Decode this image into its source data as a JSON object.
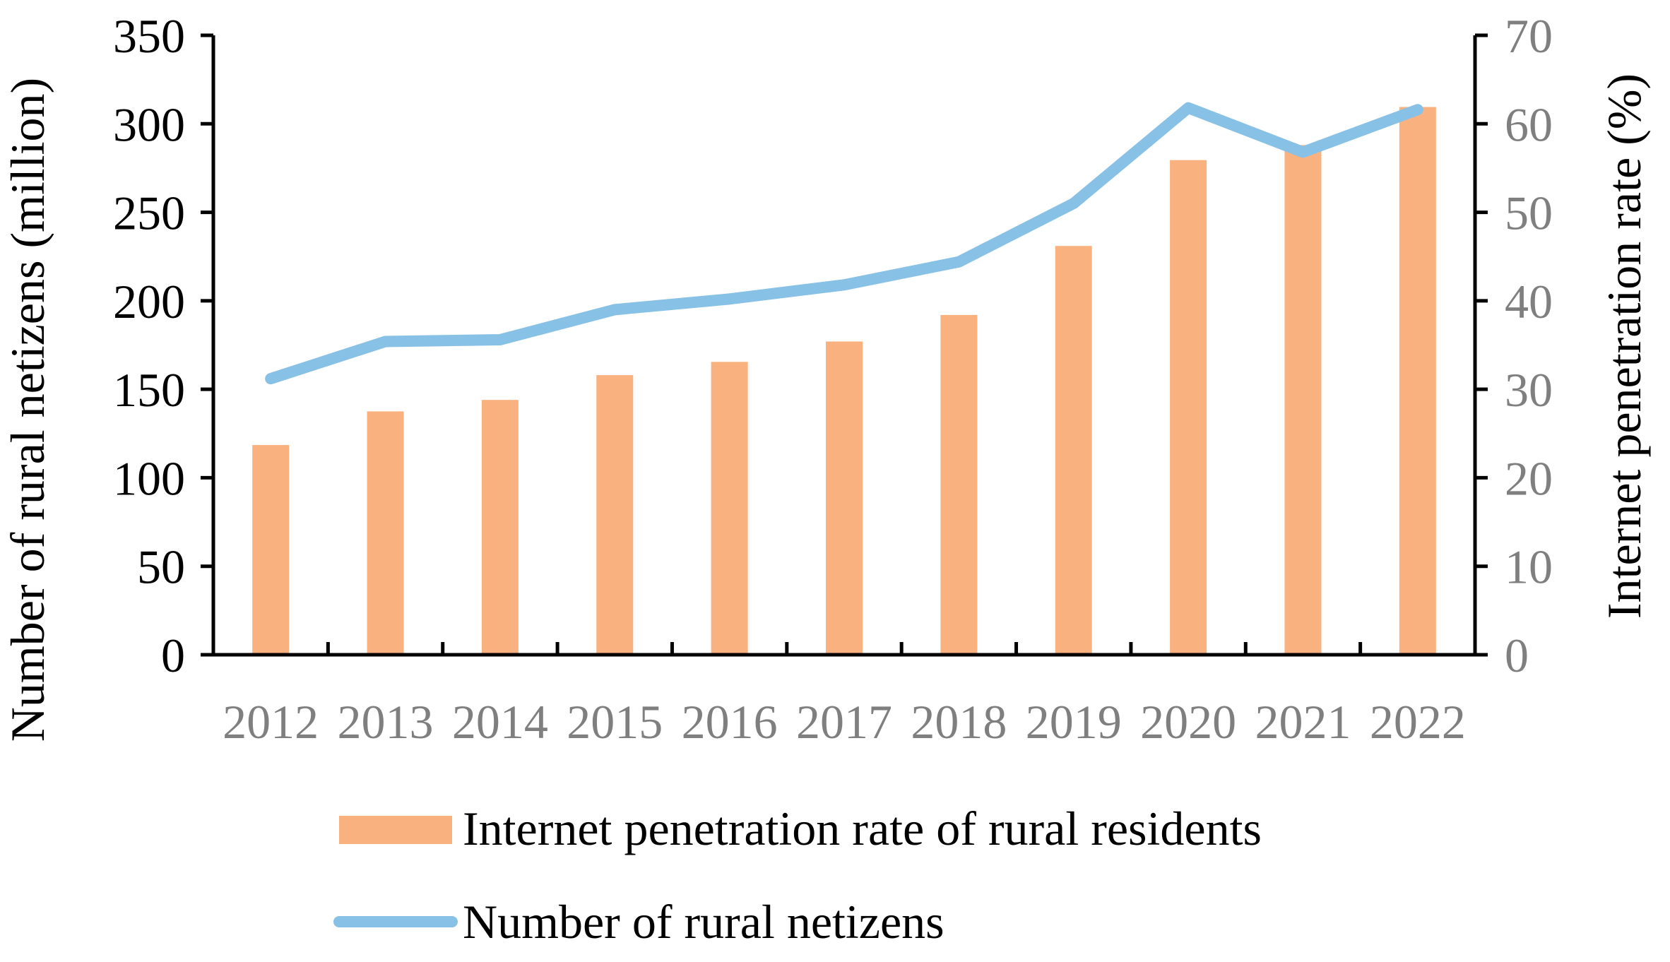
{
  "chart_data": {
    "type": "bar+line",
    "categories": [
      "2012",
      "2013",
      "2014",
      "2015",
      "2016",
      "2017",
      "2018",
      "2019",
      "2020",
      "2021",
      "2022"
    ],
    "bar_series": {
      "name": "Internet penetration rate of rural residents",
      "axis": "right",
      "values": [
        23.7,
        27.5,
        28.8,
        31.6,
        33.1,
        35.4,
        38.4,
        46.2,
        55.9,
        57.6,
        61.9
      ],
      "color": "#F9B27F"
    },
    "line_series": {
      "name": "Number of rural netizens",
      "axis": "left",
      "values": [
        156,
        177,
        178,
        195,
        201,
        209,
        222,
        255,
        309,
        284,
        308
      ],
      "color": "#88C1E6"
    },
    "y_left": {
      "label": "Number of rural netizens (million)",
      "min": 0,
      "max": 350,
      "ticks": [
        "0",
        "50",
        "100",
        "150",
        "200",
        "250",
        "300",
        "350"
      ]
    },
    "y_right": {
      "label": "Internet penetration rate (%)",
      "min": 0,
      "max": 70,
      "ticks": [
        "0",
        "10",
        "20",
        "30",
        "40",
        "50",
        "60",
        "70"
      ]
    },
    "grid": false,
    "legend_position": "bottom"
  }
}
